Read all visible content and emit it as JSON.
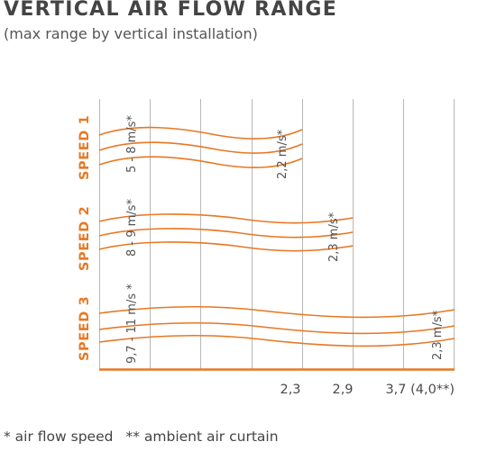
{
  "header": {
    "title": "VERTICAL AIR FLOW RANGE",
    "subtitle": "(max range by vertical installation)"
  },
  "speeds": [
    {
      "label": "SPEED 1",
      "start_speed": "5 - 8 m/s*",
      "end_speed": "2,2 m/s*",
      "range_m": 2.0
    },
    {
      "label": "SPEED 2",
      "start_speed": "8 - 9 m/s*",
      "end_speed": "2,3 m/s*",
      "range_m": 2.5
    },
    {
      "label": "SPEED 3",
      "start_speed": "9,7 - 11 m/s *",
      "end_speed": "2,3 m/s*",
      "range_m": 3.5
    }
  ],
  "axis": {
    "ticks": [
      "2,3",
      "2,9",
      "3,7 (4,0**)"
    ]
  },
  "footnote": {
    "air_flow": "* air flow speed",
    "ambient": "** ambient air curtain"
  },
  "colors": {
    "accent": "#e87722",
    "grid": "#b8b8b8",
    "text": "#4a4a4a"
  }
}
